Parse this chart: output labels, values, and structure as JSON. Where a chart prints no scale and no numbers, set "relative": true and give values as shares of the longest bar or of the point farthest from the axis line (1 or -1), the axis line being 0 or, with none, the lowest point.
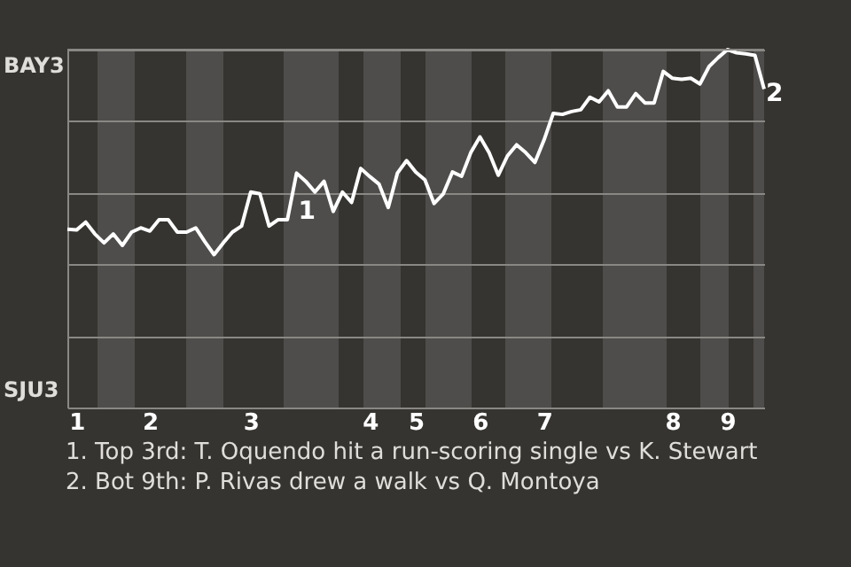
{
  "chart_data": {
    "type": "line",
    "relative": true,
    "categories": [
      null,
      "1",
      null,
      null,
      null,
      null,
      null,
      null,
      null,
      "2",
      null,
      null,
      null,
      null,
      null,
      null,
      null,
      null,
      null,
      null,
      "3",
      null,
      null,
      null,
      null,
      null,
      null,
      null,
      null,
      null,
      null,
      null,
      null,
      "4",
      null,
      null,
      null,
      null,
      "5",
      null,
      null,
      null,
      null,
      null,
      null,
      "6",
      null,
      null,
      null,
      null,
      null,
      null,
      "7",
      null,
      null,
      null,
      null,
      null,
      null,
      null,
      null,
      null,
      null,
      null,
      null,
      null,
      "8",
      null,
      null,
      null,
      null,
      null,
      "9",
      null,
      null,
      null,
      null
    ],
    "series": [
      {
        "color": "#ffffff",
        "values": [
          0.498,
          0.496,
          0.518,
          0.485,
          0.46,
          0.485,
          0.453,
          0.49,
          0.502,
          0.493,
          0.525,
          0.525,
          0.49,
          0.49,
          0.502,
          0.463,
          0.427,
          0.46,
          0.49,
          0.507,
          0.602,
          0.597,
          0.507,
          0.525,
          0.525,
          0.655,
          0.632,
          0.602,
          0.632,
          0.548,
          0.602,
          0.573,
          0.668,
          0.645,
          0.624,
          0.559,
          0.655,
          0.69,
          0.658,
          0.636,
          0.57,
          0.597,
          0.658,
          0.646,
          0.712,
          0.756,
          0.712,
          0.649,
          0.703,
          0.734,
          0.712,
          0.685,
          0.748,
          0.822,
          0.819,
          0.827,
          0.832,
          0.867,
          0.854,
          0.885,
          0.84,
          0.84,
          0.877,
          0.851,
          0.851,
          0.939,
          0.92,
          0.917,
          0.92,
          0.904,
          0.953,
          0.978,
          1,
          0.991,
          0.988,
          0.984,
          0.89
        ]
      }
    ],
    "grid": "y",
    "marker": "none",
    "line_style": "solid",
    "annotations": [
      {
        "text": "1",
        "y": 0.655
      },
      "BAY3",
      "SJU3",
      "2",
      "1. Top 3rd: T. Oquendo hit a run-scoring single vs K. Stewart",
      "2. Bot 9th: P. Rivas drew a walk vs Q. Montoya"
    ]
  }
}
